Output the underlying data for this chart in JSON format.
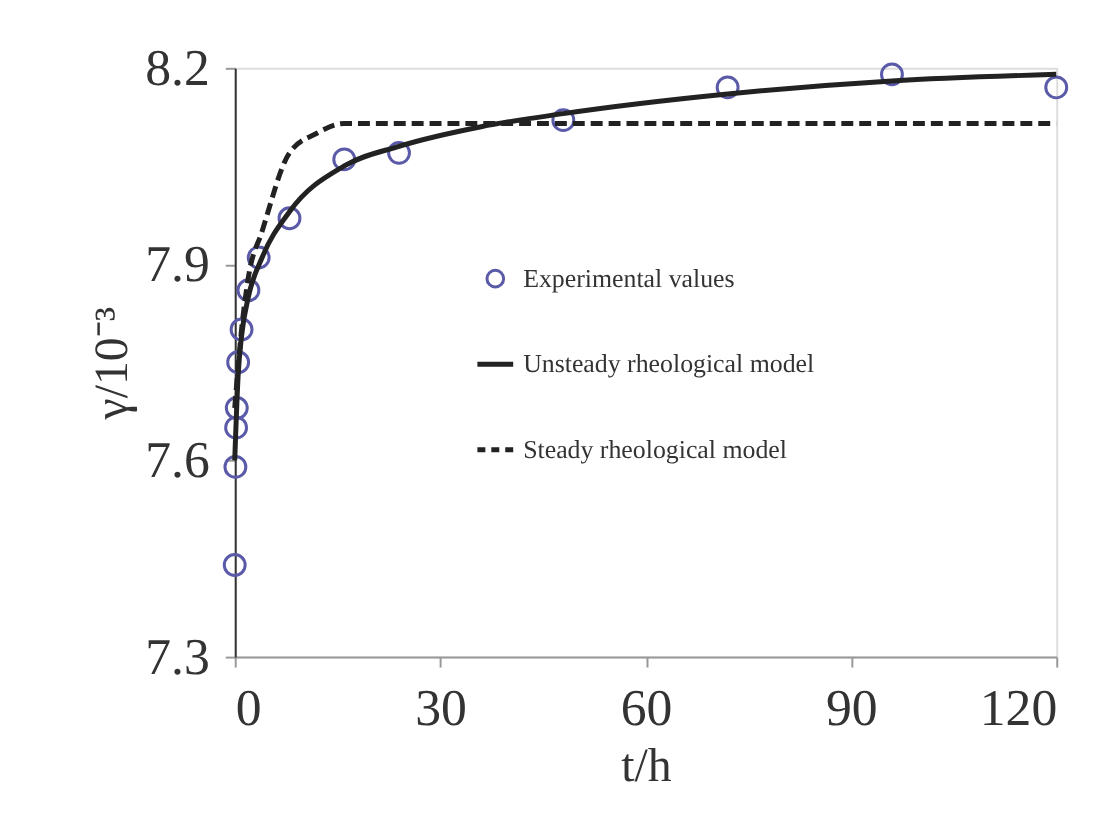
{
  "chart_data": {
    "type": "line",
    "xlabel": "t/h",
    "ylabel": "γ/10⁻³",
    "xlim": [
      0,
      120
    ],
    "ylim": [
      7.3,
      8.2
    ],
    "xticks": [
      0,
      30,
      60,
      90,
      120
    ],
    "yticks": [
      7.3,
      7.6,
      7.9,
      8.2
    ],
    "grid": false,
    "legend": "right",
    "series": [
      {
        "name": "Experimental values",
        "type": "scatter",
        "marker": "circle",
        "color": "#5a5aa8",
        "x": [
          0,
          0.1,
          0.2,
          0.3,
          0.5,
          1,
          2,
          3.5,
          8,
          16,
          24,
          48,
          72,
          96,
          120
        ],
        "values": [
          7.44,
          7.59,
          7.65,
          7.68,
          7.75,
          7.8,
          7.86,
          7.91,
          7.97,
          8.06,
          8.07,
          8.12,
          8.17,
          8.19,
          8.17
        ]
      },
      {
        "name": "Unsteady rheological model",
        "type": "line",
        "line_style": "solid",
        "color": "#222222",
        "x": [
          0,
          0.5,
          1,
          2,
          4,
          8,
          16,
          24,
          36,
          48,
          72,
          96,
          120
        ],
        "values": [
          7.6,
          7.73,
          7.79,
          7.85,
          7.91,
          7.98,
          8.05,
          8.08,
          8.11,
          8.13,
          8.16,
          8.18,
          8.19
        ]
      },
      {
        "name": "Steady rheological model",
        "type": "line",
        "line_style": "dashed",
        "color": "#222222",
        "x": [
          0,
          1,
          2,
          4,
          8,
          12,
          16,
          24,
          48,
          72,
          96,
          120
        ],
        "values": [
          7.68,
          7.8,
          7.88,
          7.95,
          8.07,
          8.1,
          8.115,
          8.115,
          8.115,
          8.115,
          8.115,
          8.115
        ]
      }
    ]
  }
}
